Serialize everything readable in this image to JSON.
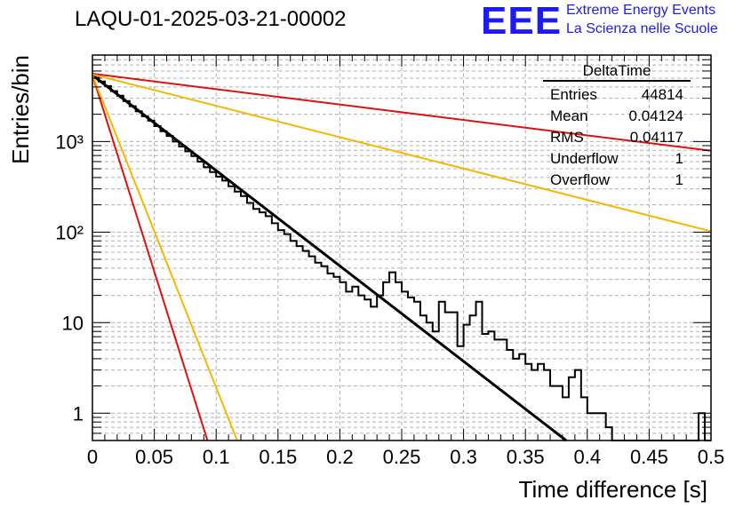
{
  "header": {
    "title": "LAQU-01-2025-03-21-00002"
  },
  "logo": {
    "mark": "EEE",
    "line1": "Extreme Energy Events",
    "line2": "La Scienza nelle Scuole",
    "color": "#1c1cf0"
  },
  "stats": {
    "title": "DeltaTime",
    "rows": [
      {
        "label": "Entries",
        "value": "44814"
      },
      {
        "label": "Mean",
        "value": "0.04124"
      },
      {
        "label": "RMS",
        "value": "0.04117"
      },
      {
        "label": "Underflow",
        "value": "1"
      },
      {
        "label": "Overflow",
        "value": "1"
      }
    ]
  },
  "chart_data": {
    "type": "line",
    "title": "LAQU-01-2025-03-21-00002",
    "xlabel": "Time difference [s]",
    "ylabel": "Entries/bin",
    "xlim": [
      0,
      0.5
    ],
    "ylim": [
      0.5,
      9000
    ],
    "yscale": "log",
    "grid": true,
    "x_ticks": [
      "0",
      "0.05",
      "0.1",
      "0.15",
      "0.2",
      "0.25",
      "0.3",
      "0.35",
      "0.4",
      "0.45",
      "0.5"
    ],
    "y_ticks": [
      "1",
      "10",
      "10²",
      "10³"
    ],
    "histogram": {
      "name": "DeltaTime",
      "color": "#000000",
      "bin_width": 0.005,
      "values": [
        5300,
        4600,
        4100,
        3600,
        3200,
        2800,
        2450,
        2150,
        1900,
        1700,
        1480,
        1300,
        1150,
        1000,
        880,
        780,
        690,
        600,
        520,
        460,
        410,
        370,
        320,
        280,
        250,
        210,
        180,
        165,
        150,
        125,
        105,
        95,
        80,
        70,
        62,
        54,
        46,
        42,
        35,
        32,
        28,
        22,
        25,
        20,
        18,
        15,
        20,
        28,
        36,
        28,
        22,
        19,
        17,
        12,
        10,
        8,
        17,
        13,
        13,
        5.5,
        9.5,
        12,
        17,
        7.5,
        8,
        6.5,
        6.5,
        5,
        4,
        4.5,
        3.5,
        3,
        3.5,
        3,
        2,
        2,
        1.5,
        2.5,
        3,
        1.5,
        1,
        1,
        1,
        0.7,
        0.5,
        0.5,
        0.5,
        0.5,
        0.5,
        0.5,
        0.5,
        0.5,
        0.5,
        0.5,
        0.5,
        0.5,
        0.5,
        0.5,
        1,
        0.5
      ]
    },
    "series": [
      {
        "name": "fit",
        "color": "#000000",
        "x": [
          0,
          0.383
        ],
        "y": [
          5400,
          0.5
        ]
      },
      {
        "name": "red-slow",
        "color": "#e01010",
        "x": [
          0,
          0.5
        ],
        "y": [
          5600,
          790
        ]
      },
      {
        "name": "orange-slow",
        "color": "#f5b800",
        "x": [
          0,
          0.5
        ],
        "y": [
          5500,
          102
        ]
      },
      {
        "name": "red-fast",
        "color": "#e01010",
        "x": [
          0,
          0.093
        ],
        "y": [
          5400,
          0.5
        ]
      },
      {
        "name": "orange-fast",
        "color": "#f5b800",
        "x": [
          0,
          0.117
        ],
        "y": [
          5400,
          0.5
        ]
      }
    ]
  }
}
